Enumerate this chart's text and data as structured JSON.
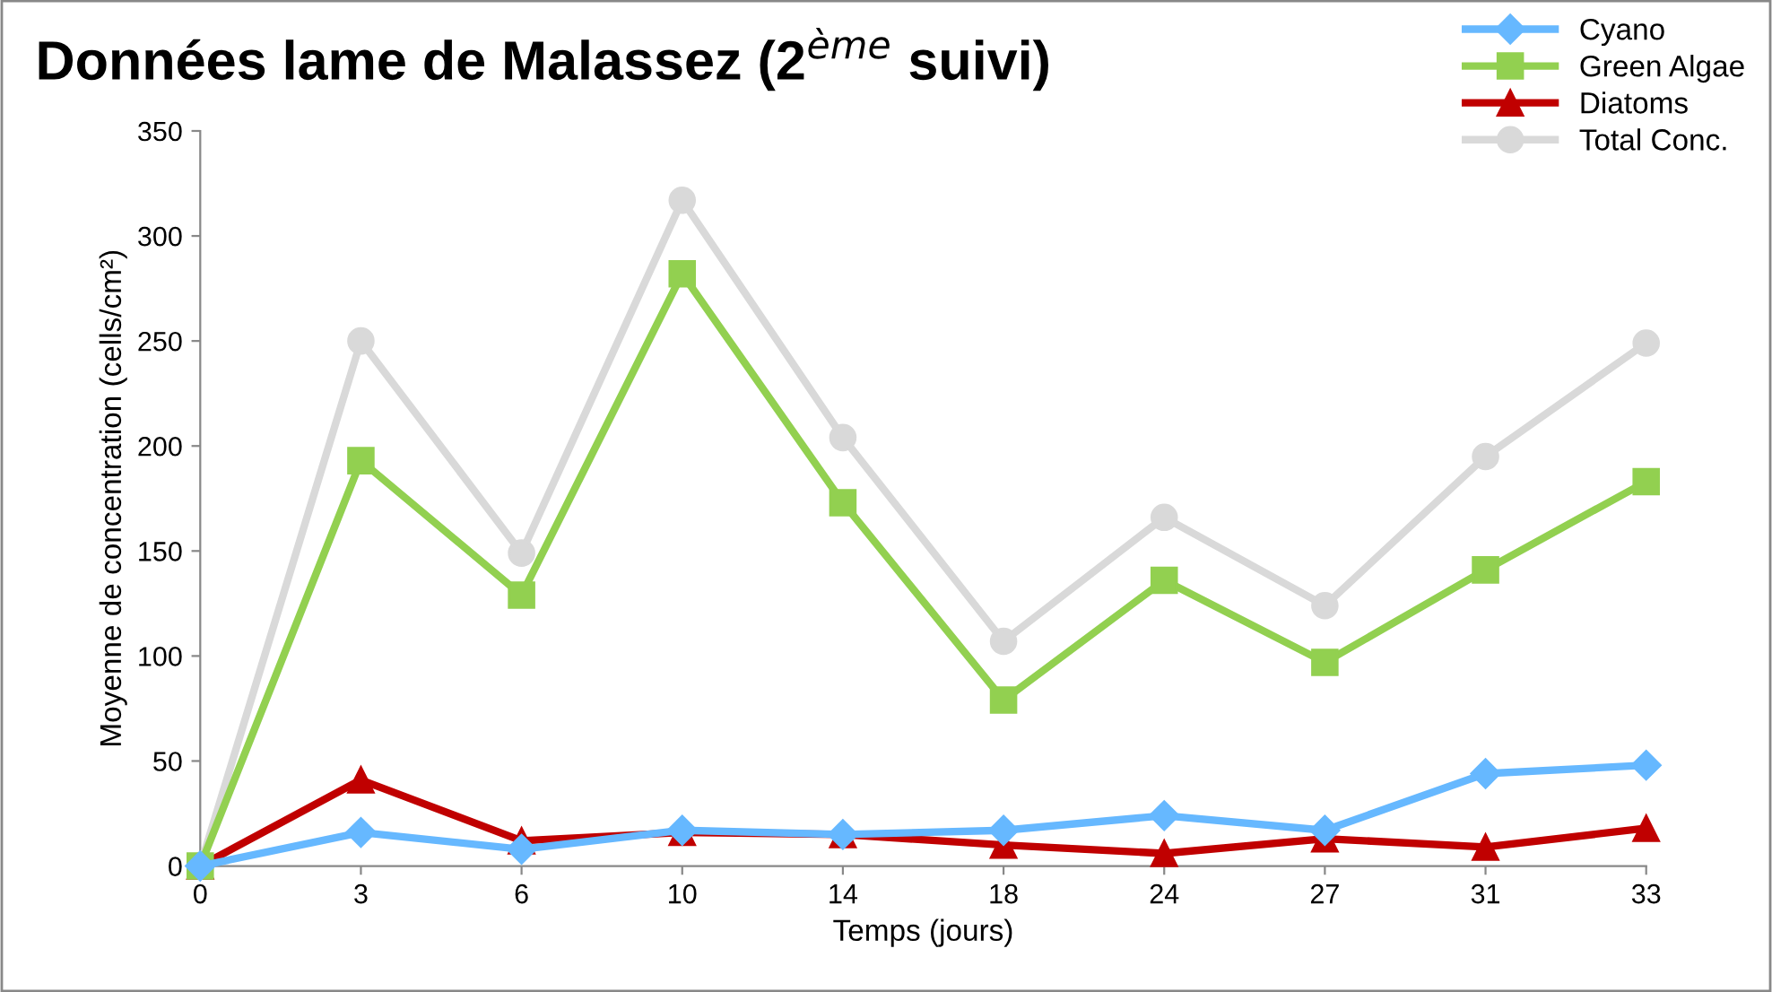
{
  "chart_data": {
    "type": "line",
    "title": "Données lame de Malassez (2$^{ème}$ suivi)",
    "xlabel": "Temps (jours)",
    "ylabel": "Moyenne de concentration (cells/cm²)",
    "categories": [
      "0",
      "3",
      "6",
      "10",
      "14",
      "18",
      "24",
      "27",
      "31",
      "33"
    ],
    "series": [
      {
        "name": "Cyano",
        "color": "#66b8ff",
        "marker": "diamond",
        "values": [
          0,
          16,
          8,
          17,
          15,
          17,
          24,
          17,
          44,
          48
        ]
      },
      {
        "name": "Green Algae",
        "color": "#92d050",
        "marker": "square",
        "values": [
          0,
          193,
          129,
          282,
          173,
          79,
          136,
          97,
          141,
          183
        ]
      },
      {
        "name": "Diatoms",
        "color": "#c00000",
        "marker": "triangle",
        "values": [
          0,
          41,
          12,
          16,
          15,
          10,
          6,
          13,
          9,
          18
        ]
      },
      {
        "name": "Total Conc.",
        "color": "#d9d9d9",
        "marker": "circle",
        "values": [
          0,
          250,
          149,
          317,
          204,
          107,
          166,
          124,
          195,
          249
        ]
      }
    ],
    "ylim": [
      0,
      350
    ],
    "yticks": [
      0,
      50,
      100,
      150,
      200,
      250,
      300,
      350
    ],
    "grid": false,
    "legend": "top right",
    "line_style": "solid"
  }
}
